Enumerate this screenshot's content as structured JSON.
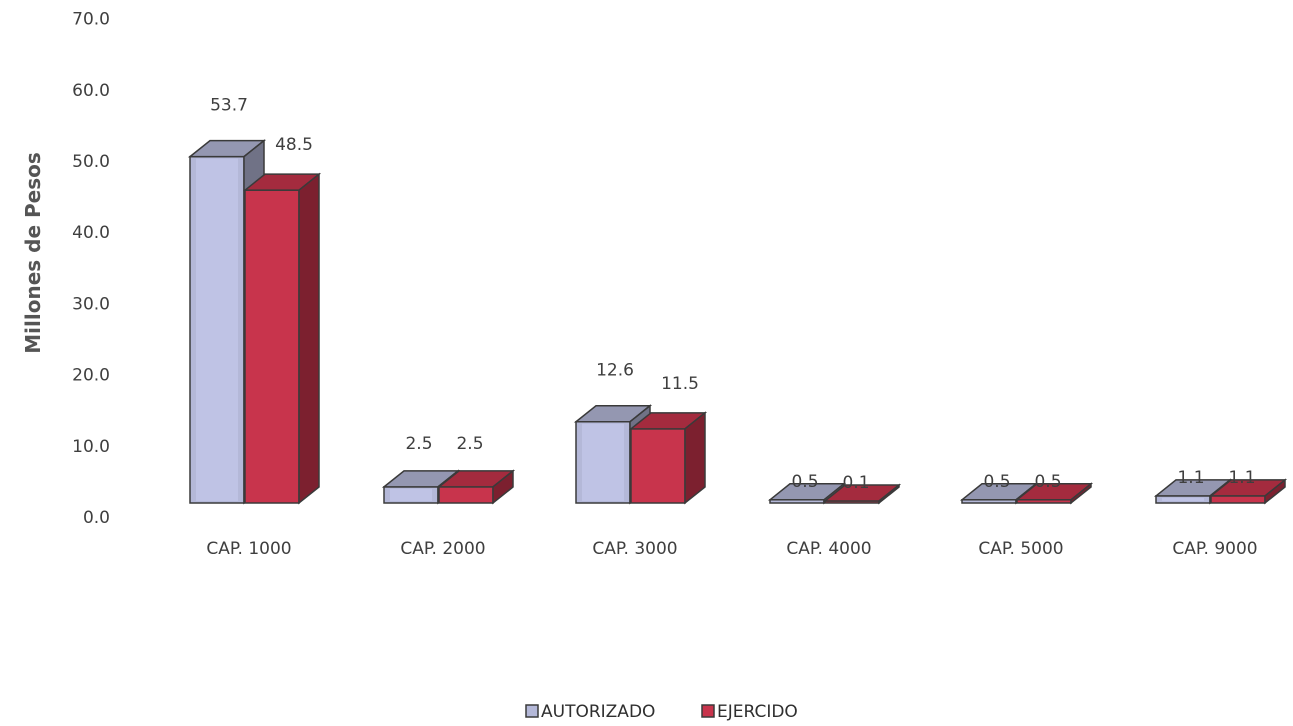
{
  "chart_data": {
    "type": "bar",
    "style": "3d-clustered-column",
    "categories": [
      "CAP. 1000",
      "CAP. 2000",
      "CAP. 3000",
      "CAP. 4000",
      "CAP. 5000",
      "CAP. 9000"
    ],
    "series": [
      {
        "name": "AUTORIZADO",
        "values": [
          53.7,
          2.5,
          12.6,
          0.5,
          0.5,
          1.1
        ],
        "labels": [
          "53.7",
          "2.5",
          "12.6",
          "0.5",
          "0.5",
          "1.1"
        ],
        "color": "#b4b8d8"
      },
      {
        "name": "EJERCIDO",
        "values": [
          48.5,
          2.5,
          11.5,
          0.1,
          0.5,
          1.1
        ],
        "labels": [
          "48.5",
          "2.5",
          "11.5",
          "0.1",
          "0.5",
          "1.1"
        ],
        "color": "#c8344c"
      }
    ],
    "ylabel": "Millones de Pesos",
    "xlabel": "",
    "ylim": [
      0,
      70
    ],
    "yticks": [
      "0.0",
      "10.0",
      "20.0",
      "30.0",
      "40.0",
      "50.0",
      "60.0",
      "70.0"
    ],
    "grid": false,
    "legend": "bottom-center"
  }
}
